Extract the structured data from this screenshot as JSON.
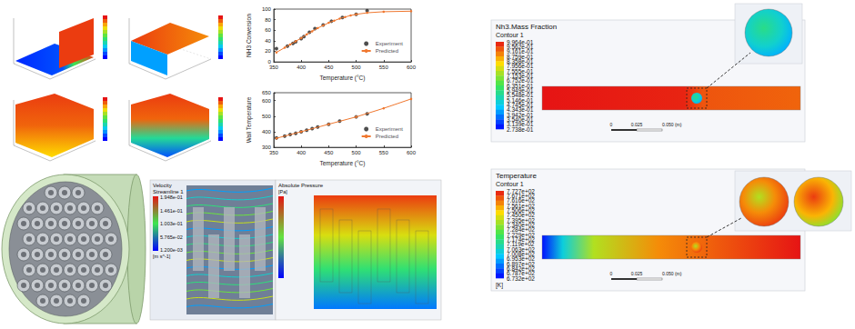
{
  "chart_data": [
    {
      "type": "line",
      "x_label": "Temperature (°C)",
      "y_label": "NH3 Conversion",
      "xlim": [
        350,
        600
      ],
      "xticks": [
        350,
        400,
        450,
        500,
        550,
        600
      ],
      "ylim": [
        0,
        100
      ],
      "yticks": [
        0,
        20,
        40,
        60,
        80,
        100
      ],
      "grid": false,
      "legend": "lower right",
      "series": [
        {
          "name": "Experiment",
          "type": "scatter",
          "color": "#222222",
          "marker": "circle",
          "x": [
            355,
            375,
            385,
            390,
            400,
            405,
            415,
            425,
            440,
            455,
            475,
            500,
            520
          ],
          "values": [
            25,
            30,
            35,
            38,
            44,
            48,
            56,
            63,
            70,
            77,
            84,
            90,
            97
          ]
        },
        {
          "name": "Predicted",
          "type": "line",
          "color": "#f07830",
          "marker": "circle",
          "line_style": "solid",
          "x": [
            355,
            370,
            380,
            390,
            400,
            410,
            420,
            430,
            440,
            450,
            460,
            470,
            480,
            490,
            500,
            520,
            550,
            600
          ],
          "values": [
            18,
            27,
            33,
            39,
            45,
            52,
            58,
            64,
            69,
            74,
            78,
            82,
            85,
            88,
            90,
            93,
            95,
            96
          ]
        }
      ]
    },
    {
      "type": "line",
      "x_label": "Temperature (°C)",
      "y_label": "Wall Temperature",
      "xlim": [
        350,
        600
      ],
      "xticks": [
        350,
        400,
        450,
        500,
        550,
        600
      ],
      "ylim": [
        300,
        650
      ],
      "yticks": [
        300,
        400,
        500,
        600
      ],
      "grid": false,
      "legend": "lower right",
      "series": [
        {
          "name": "Experiment",
          "type": "scatter",
          "color": "#222222",
          "marker": "circle",
          "x": [
            355,
            370,
            380,
            390,
            400,
            410,
            420,
            430,
            450,
            470,
            500,
            520
          ],
          "values": [
            360,
            372,
            382,
            390,
            400,
            410,
            420,
            430,
            448,
            468,
            495,
            515
          ]
        },
        {
          "name": "Predicted",
          "type": "line",
          "color": "#f07830",
          "marker": "circle",
          "line_style": "solid",
          "x": [
            355,
            400,
            450,
            500,
            550,
            600
          ],
          "values": [
            358,
            400,
            448,
            495,
            550,
            610
          ]
        }
      ]
    }
  ],
  "velocity_panel": {
    "title": "Velocity",
    "subtitle": "Streamline 1",
    "colorbar_labels": [
      "1.948e-01",
      "1.461e-01",
      "1.003e-01",
      "5.765e-02",
      "1.200e-03"
    ],
    "unit": "[m s^-1]"
  },
  "pressure_panel": {
    "title": "Absolute Pressure",
    "unit": "[Pa]"
  },
  "contours": [
    {
      "title": "Nh3.Mass Fraction",
      "subtitle": "Contour 1",
      "colorbar_labels": [
        "9.964e-01",
        "9.562e-01",
        "9.161e-01",
        "8.759e-01",
        "8.358e-01",
        "7.956e-01",
        "7.555e-01",
        "7.153e-01",
        "6.752e-01",
        "6.351e-01",
        "5.949e-01",
        "5.548e-01",
        "5.146e-01",
        "4.745e-01",
        "4.343e-01",
        "3.942e-01",
        "3.540e-01",
        "3.139e-01",
        "2.738e-01"
      ],
      "scale_labels": [
        "0",
        "0.025",
        "0.050 (m)"
      ]
    },
    {
      "title": "Temperature",
      "subtitle": "Contour 1",
      "colorbar_labels": [
        "7.727e+02",
        "7.671e+02",
        "7.616e+02",
        "7.561e+02",
        "7.506e+02",
        "7.450e+02",
        "7.395e+02",
        "7.340e+02",
        "7.284e+02",
        "7.229e+02",
        "7.174e+02",
        "7.119e+02",
        "7.063e+02",
        "7.008e+02",
        "6.953e+02",
        "6.897e+02",
        "6.842e+02",
        "6.787e+02",
        "6.732e+02"
      ],
      "unit": "[K]",
      "scale_labels": [
        "0",
        "0.025",
        "0.050 (m)"
      ]
    }
  ]
}
